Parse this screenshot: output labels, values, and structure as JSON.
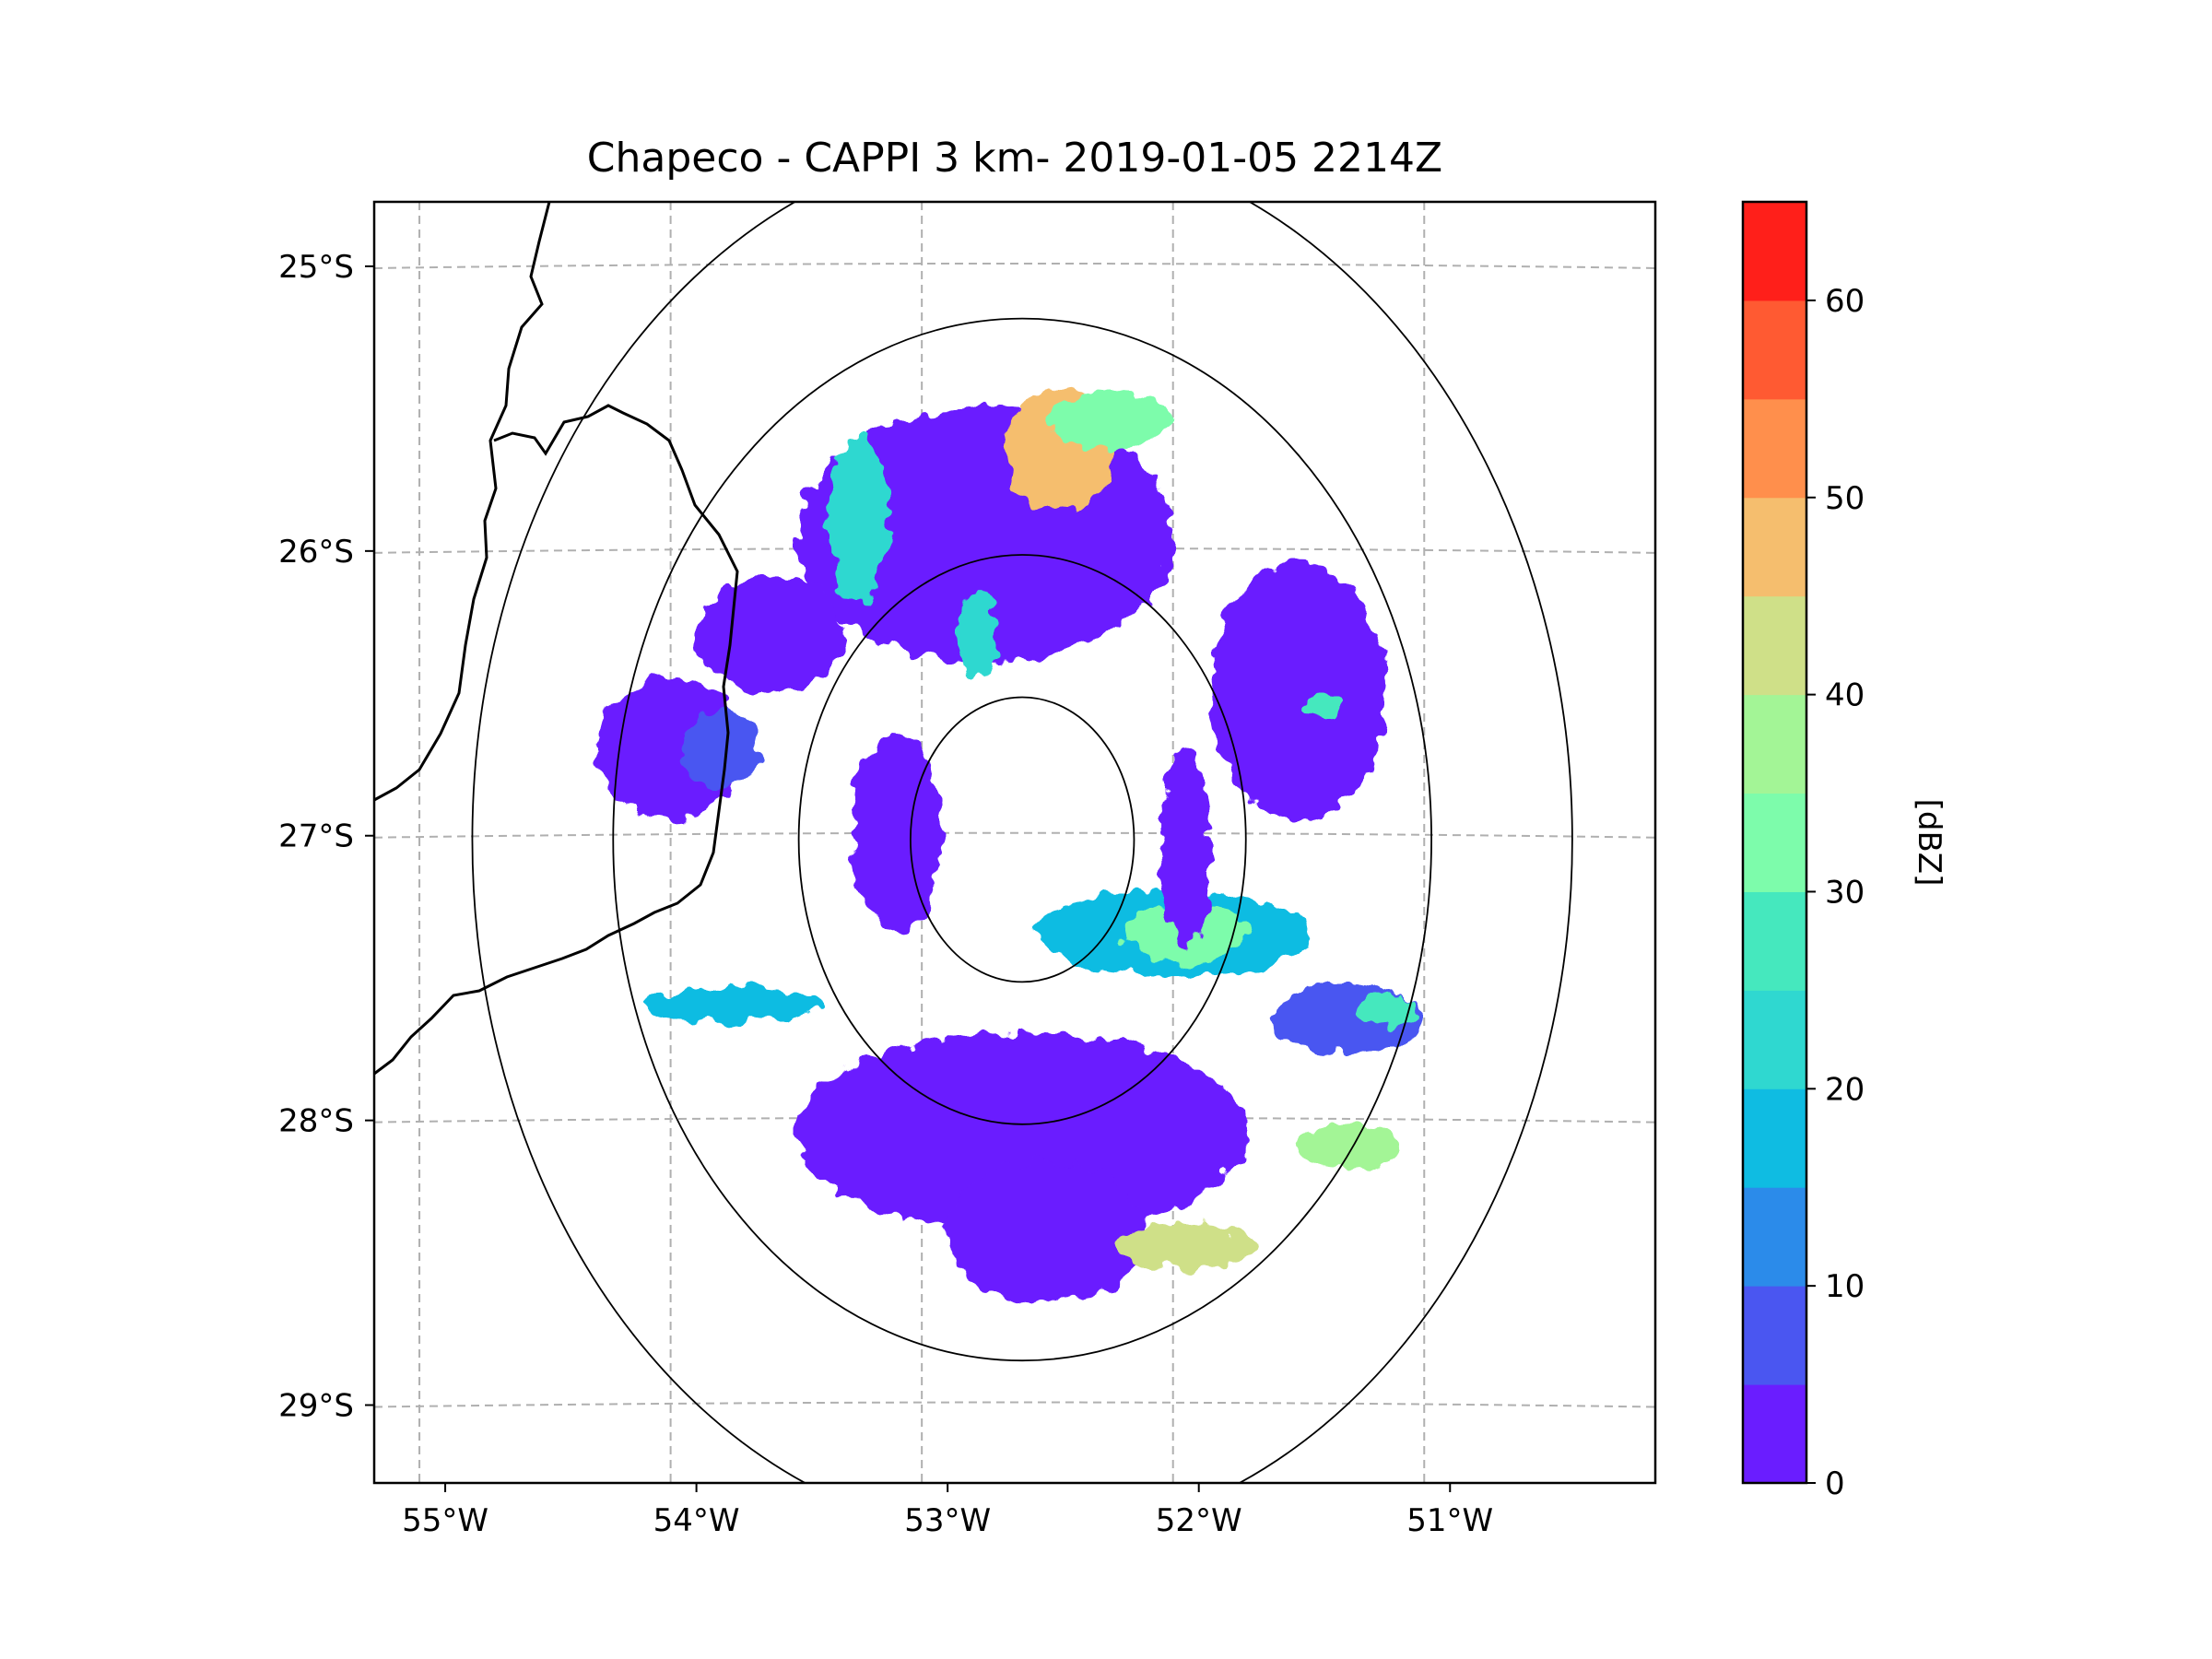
{
  "title": "Chapeco - CAPPI 3 km- 2019-01-05 2214Z",
  "map": {
    "lon_range": [
      -55.18,
      -50.08
    ],
    "lat_range": [
      -29.28,
      -24.78
    ],
    "radar_center": {
      "lon": -52.6,
      "lat": -27.02
    },
    "range_ring_radii_deg": [
      0.5,
      1.0,
      1.83,
      2.46
    ],
    "gridline_lons": [
      -55,
      -54,
      -53,
      -52,
      -51
    ],
    "gridline_lats": [
      -25,
      -26,
      -27,
      -28,
      -29
    ],
    "xtick_labels": [
      "55°W",
      "54°W",
      "53°W",
      "52°W",
      "51°W"
    ],
    "ytick_labels": [
      "25°S",
      "26°S",
      "27°S",
      "28°S",
      "29°S"
    ],
    "gridline_color": "#b0b0b0",
    "coastline_color": "#000000"
  },
  "colorbar": {
    "label": "[dBZ]",
    "min": 0,
    "max": 65,
    "ticks": [
      0,
      10,
      20,
      30,
      40,
      50,
      60
    ],
    "tick_labels": [
      "0",
      "10",
      "20",
      "30",
      "40",
      "50",
      "60"
    ],
    "bins": [
      {
        "from": 0,
        "to": 5,
        "color": "#6a1dff"
      },
      {
        "from": 5,
        "to": 10,
        "color": "#4a56f1"
      },
      {
        "from": 10,
        "to": 15,
        "color": "#2b8bea"
      },
      {
        "from": 15,
        "to": 20,
        "color": "#0fbce2"
      },
      {
        "from": 20,
        "to": 25,
        "color": "#2fd8d0"
      },
      {
        "from": 25,
        "to": 30,
        "color": "#45e8be"
      },
      {
        "from": 30,
        "to": 35,
        "color": "#7dfcab"
      },
      {
        "from": 35,
        "to": 40,
        "color": "#a3f596"
      },
      {
        "from": 40,
        "to": 45,
        "color": "#cfe088"
      },
      {
        "from": 45,
        "to": 50,
        "color": "#f5be6e"
      },
      {
        "from": 50,
        "to": 55,
        "color": "#ff8f4c"
      },
      {
        "from": 55,
        "to": 60,
        "color": "#ff5a32"
      },
      {
        "from": 60,
        "to": 65,
        "color": "#ff1f1a"
      }
    ]
  },
  "echo_regions": [
    {
      "name": "north-band",
      "lon": -52.75,
      "lat": -25.95,
      "rlon": 0.75,
      "rlat": 0.45,
      "dbz": 3
    },
    {
      "name": "north-core",
      "lon": -52.45,
      "lat": -25.65,
      "rlon": 0.22,
      "rlat": 0.22,
      "dbz": 48
    },
    {
      "name": "north-mid",
      "lon": -52.25,
      "lat": -25.55,
      "rlon": 0.25,
      "rlat": 0.1,
      "dbz": 33
    },
    {
      "name": "north-west-streak",
      "lon": -53.25,
      "lat": -25.9,
      "rlon": 0.12,
      "rlat": 0.3,
      "dbz": 22
    },
    {
      "name": "north-spur",
      "lon": -52.78,
      "lat": -26.3,
      "rlon": 0.08,
      "rlat": 0.15,
      "dbz": 20
    },
    {
      "name": "northwest-wedge",
      "lon": -53.6,
      "lat": -26.3,
      "rlon": 0.3,
      "rlat": 0.2,
      "dbz": 4
    },
    {
      "name": "west-block",
      "lon": -54.0,
      "lat": -26.7,
      "rlon": 0.3,
      "rlat": 0.25,
      "dbz": 3
    },
    {
      "name": "west-core",
      "lon": -53.8,
      "lat": -26.7,
      "rlon": 0.15,
      "rlat": 0.14,
      "dbz": 8
    },
    {
      "name": "inner-west",
      "lon": -53.1,
      "lat": -27.0,
      "rlon": 0.18,
      "rlat": 0.35,
      "dbz": 3
    },
    {
      "name": "central-east-line",
      "lon": -52.0,
      "lat": -27.35,
      "rlon": 0.55,
      "rlat": 0.15,
      "dbz": 18
    },
    {
      "name": "central-east-core",
      "lon": -51.95,
      "lat": -27.35,
      "rlon": 0.25,
      "rlat": 0.1,
      "dbz": 30
    },
    {
      "name": "west-streak",
      "lon": -53.75,
      "lat": -27.6,
      "rlon": 0.35,
      "rlat": 0.06,
      "dbz": 18
    },
    {
      "name": "south-arc",
      "lon": -52.6,
      "lat": -28.05,
      "rlon": 0.9,
      "rlat": 0.35,
      "dbz": 3
    },
    {
      "name": "south-lobe",
      "lon": -52.5,
      "lat": -28.4,
      "rlon": 0.4,
      "rlat": 0.25,
      "dbz": 3
    },
    {
      "name": "east-band",
      "lon": -51.3,
      "lat": -27.65,
      "rlon": 0.3,
      "rlat": 0.12,
      "dbz": 6
    },
    {
      "name": "east-core",
      "lon": -51.15,
      "lat": -27.62,
      "rlon": 0.12,
      "rlat": 0.06,
      "dbz": 27
    },
    {
      "name": "northeast-scatter",
      "lon": -51.5,
      "lat": -26.5,
      "rlon": 0.35,
      "rlat": 0.45,
      "dbz": 3
    },
    {
      "name": "northeast-core",
      "lon": -51.4,
      "lat": -26.55,
      "rlon": 0.07,
      "rlat": 0.05,
      "dbz": 25
    },
    {
      "name": "southeast-streak",
      "lon": -51.3,
      "lat": -28.1,
      "rlon": 0.2,
      "rlat": 0.08,
      "dbz": 38
    },
    {
      "name": "south-core",
      "lon": -51.95,
      "lat": -28.45,
      "rlon": 0.28,
      "rlat": 0.08,
      "dbz": 42
    },
    {
      "name": "east-inner",
      "lon": -51.95,
      "lat": -27.05,
      "rlon": 0.1,
      "rlat": 0.35,
      "dbz": 3
    }
  ]
}
